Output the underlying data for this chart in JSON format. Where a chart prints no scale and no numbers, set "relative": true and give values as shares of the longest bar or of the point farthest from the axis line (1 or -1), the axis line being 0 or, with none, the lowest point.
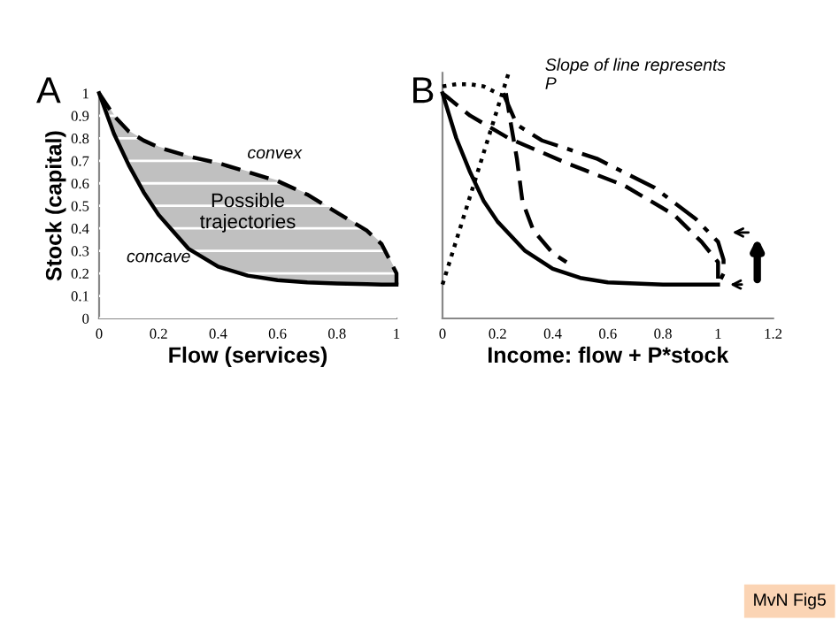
{
  "chart_data": [
    {
      "type": "line",
      "title": "A",
      "xlabel": "Flow (services)",
      "ylabel": "Stock (capital)",
      "xlim": [
        0,
        1
      ],
      "ylim": [
        0,
        1
      ],
      "xticks": [
        0,
        0.2,
        0.4,
        0.6,
        0.8,
        1
      ],
      "yticks": [
        0,
        0.1,
        0.2,
        0.3,
        0.4,
        0.5,
        0.6,
        0.7,
        0.8,
        0.9,
        1
      ],
      "grid": "y",
      "series": [
        {
          "x": [
            0,
            0.05,
            0.1,
            0.15,
            0.2,
            0.3,
            0.4,
            0.5,
            0.6,
            0.7,
            0.8,
            0.9,
            0.95,
            1.0,
            1.0
          ],
          "values": [
            1,
            0.9,
            0.83,
            0.79,
            0.76,
            0.72,
            0.69,
            0.65,
            0.61,
            0.55,
            0.47,
            0.39,
            0.33,
            0.2,
            0.15
          ],
          "color": "#000000",
          "line_style": "dashed"
        },
        {
          "x": [
            0,
            0.05,
            0.1,
            0.15,
            0.2,
            0.3,
            0.4,
            0.5,
            0.6,
            0.7,
            0.8,
            0.9,
            0.95,
            1.0,
            1.0
          ],
          "values": [
            1,
            0.82,
            0.68,
            0.56,
            0.46,
            0.31,
            0.23,
            0.19,
            0.17,
            0.16,
            0.155,
            0.152,
            0.15,
            0.15,
            0.15
          ],
          "lower": [
            1,
            0.82,
            0.68,
            0.56,
            0.46,
            0.31,
            0.23,
            0.19,
            0.17,
            0.16,
            0.155,
            0.152,
            0.15,
            0.15,
            0.15
          ],
          "upper": [
            1,
            0.9,
            0.83,
            0.79,
            0.76,
            0.72,
            0.69,
            0.65,
            0.61,
            0.55,
            0.47,
            0.39,
            0.33,
            0.2,
            0.15
          ],
          "color": "#000000",
          "line_style": "solid"
        }
      ],
      "annotations": [
        "convex",
        "concave",
        "Possible trajectories"
      ]
    },
    {
      "type": "line",
      "title": "B",
      "xlabel": "Income: flow + P*stock",
      "xlim": [
        0,
        1.2
      ],
      "relative": true,
      "xticks": [
        0,
        0.2,
        0.4,
        0.6,
        0.8,
        1,
        1.2
      ],
      "series": [
        {
          "x": [
            0,
            0.05,
            0.1,
            0.15,
            0.2,
            0.3,
            0.4,
            0.5,
            0.6,
            0.7,
            0.8,
            0.9,
            1.0
          ],
          "values": [
            0.917,
            0.734,
            0.596,
            0.477,
            0.394,
            0.275,
            0.202,
            0.165,
            0.147,
            0.142,
            0.138,
            0.138,
            0.138
          ],
          "color": "#000000",
          "line_style": "solid"
        },
        {
          "x": [
            0,
            0.24
          ],
          "values": [
            0.138,
            1
          ],
          "color": "#000000",
          "line_style": "dotted"
        },
        {
          "x": [
            0,
            0.05,
            0.1,
            0.15,
            0.2
          ],
          "values": [
            0.945,
            0.954,
            0.954,
            0.945,
            0.917
          ],
          "color": "#000000",
          "line_style": "dotted"
        },
        {
          "x": [
            0.23,
            0.25,
            0.27,
            0.29,
            0.33,
            0.4,
            0.45
          ],
          "values": [
            0.917,
            0.78,
            0.651,
            0.477,
            0.358,
            0.266,
            0.229
          ],
          "color": "#000000",
          "line_style": "dashed"
        },
        {
          "x": [
            0.0,
            0.03,
            0.1,
            0.24,
            0.45,
            0.66,
            0.84,
            0.94,
            1.0,
            1.0
          ],
          "values": [
            0.917,
            0.89,
            0.826,
            0.734,
            0.633,
            0.541,
            0.422,
            0.312,
            0.229,
            0.147
          ],
          "color": "#000000",
          "line_style": "dashed"
        },
        {
          "x": [
            0.22,
            0.27,
            0.36,
            0.56,
            0.77,
            0.92,
            1.0,
            1.02,
            1.02,
            1.0
          ],
          "values": [
            0.917,
            0.789,
            0.725,
            0.651,
            0.532,
            0.404,
            0.312,
            0.239,
            0.183,
            0.138
          ],
          "color": "#000000",
          "line_style": "dashdot"
        }
      ],
      "annotations": [
        "Slope of line represents P",
        "MvN Fig5"
      ]
    }
  ]
}
